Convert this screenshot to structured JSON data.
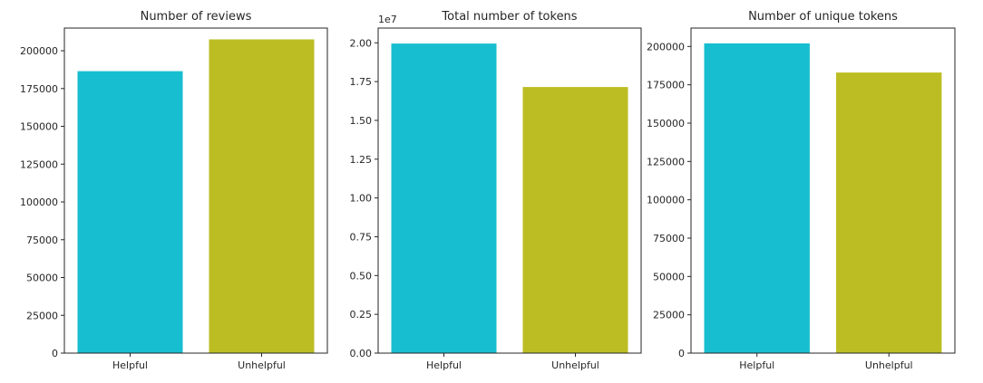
{
  "chart_data": [
    {
      "type": "bar",
      "title": "Number of reviews",
      "categories": [
        "Helpful",
        "Unhelpful"
      ],
      "values": [
        186500,
        207500
      ],
      "colors": [
        "#17becf",
        "#bcbd22"
      ],
      "ylim": [
        0,
        215000
      ],
      "yticks": [
        0,
        25000,
        50000,
        75000,
        100000,
        125000,
        150000,
        175000,
        200000
      ],
      "ytick_labels": [
        "0",
        "25000",
        "50000",
        "75000",
        "100000",
        "125000",
        "150000",
        "175000",
        "200000"
      ],
      "offset_label": "",
      "grid": false
    },
    {
      "type": "bar",
      "title": "Total number of tokens",
      "categories": [
        "Helpful",
        "Unhelpful"
      ],
      "values": [
        19950000,
        17150000
      ],
      "colors": [
        "#17becf",
        "#bcbd22"
      ],
      "ylim": [
        0,
        20950000
      ],
      "yticks": [
        0,
        2500000,
        5000000,
        7500000,
        10000000,
        12500000,
        15000000,
        17500000,
        20000000
      ],
      "ytick_labels": [
        "0.00",
        "0.25",
        "0.50",
        "0.75",
        "1.00",
        "1.25",
        "1.50",
        "1.75",
        "2.00"
      ],
      "offset_label": "1e7",
      "grid": false
    },
    {
      "type": "bar",
      "title": "Number of unique tokens",
      "categories": [
        "Helpful",
        "Unhelpful"
      ],
      "values": [
        202000,
        183000
      ],
      "colors": [
        "#17becf",
        "#bcbd22"
      ],
      "ylim": [
        0,
        212000
      ],
      "yticks": [
        0,
        25000,
        50000,
        75000,
        100000,
        125000,
        150000,
        175000,
        200000
      ],
      "ytick_labels": [
        "0",
        "25000",
        "50000",
        "75000",
        "100000",
        "125000",
        "150000",
        "175000",
        "200000"
      ],
      "offset_label": "",
      "grid": false
    }
  ]
}
